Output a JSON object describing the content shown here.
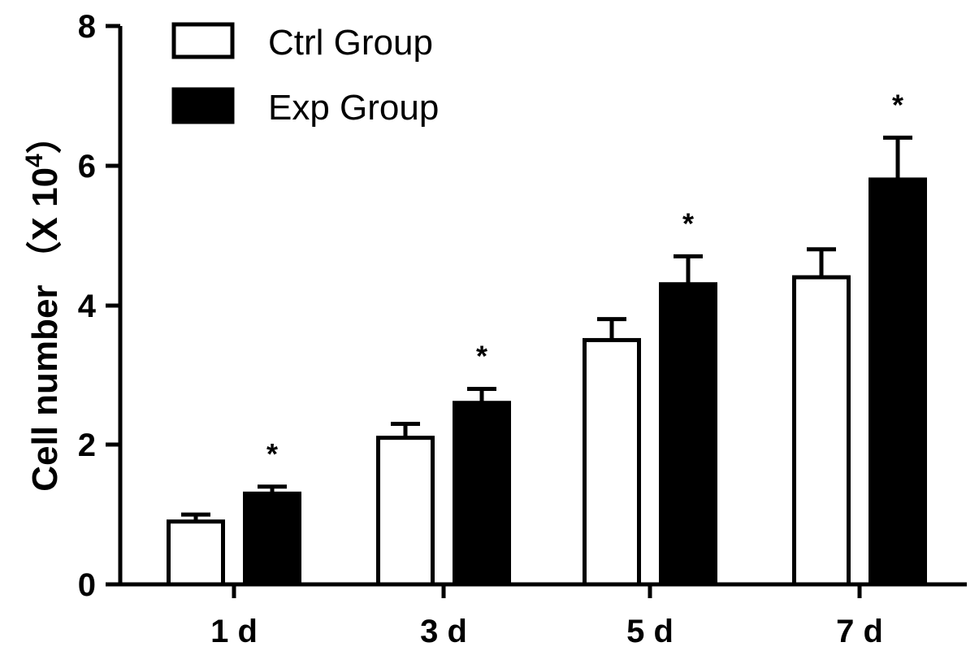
{
  "chart_data": {
    "type": "bar",
    "categories": [
      "1 d",
      "3 d",
      "5 d",
      "7 d"
    ],
    "series": [
      {
        "name": "Ctrl Group",
        "values": [
          0.9,
          2.1,
          3.5,
          4.4
        ],
        "errors": [
          0.1,
          0.2,
          0.3,
          0.4
        ],
        "fill": "#ffffff",
        "stroke": "#000000"
      },
      {
        "name": "Exp Group",
        "values": [
          1.3,
          2.6,
          4.3,
          5.8
        ],
        "errors": [
          0.1,
          0.2,
          0.4,
          0.6
        ],
        "fill": "#000000",
        "stroke": "#000000"
      }
    ],
    "significance": [
      "*",
      "*",
      "*",
      "*"
    ],
    "ylabel": "Cell number",
    "ylabel_unit_prefix": "（X 10",
    "ylabel_unit_exp": "4",
    "ylabel_unit_suffix": "）",
    "xlabel": "",
    "ylim": [
      0,
      8
    ],
    "yticks": [
      "0",
      "2",
      "4",
      "6",
      "8"
    ],
    "grid": false,
    "legend_position": "top-left"
  }
}
